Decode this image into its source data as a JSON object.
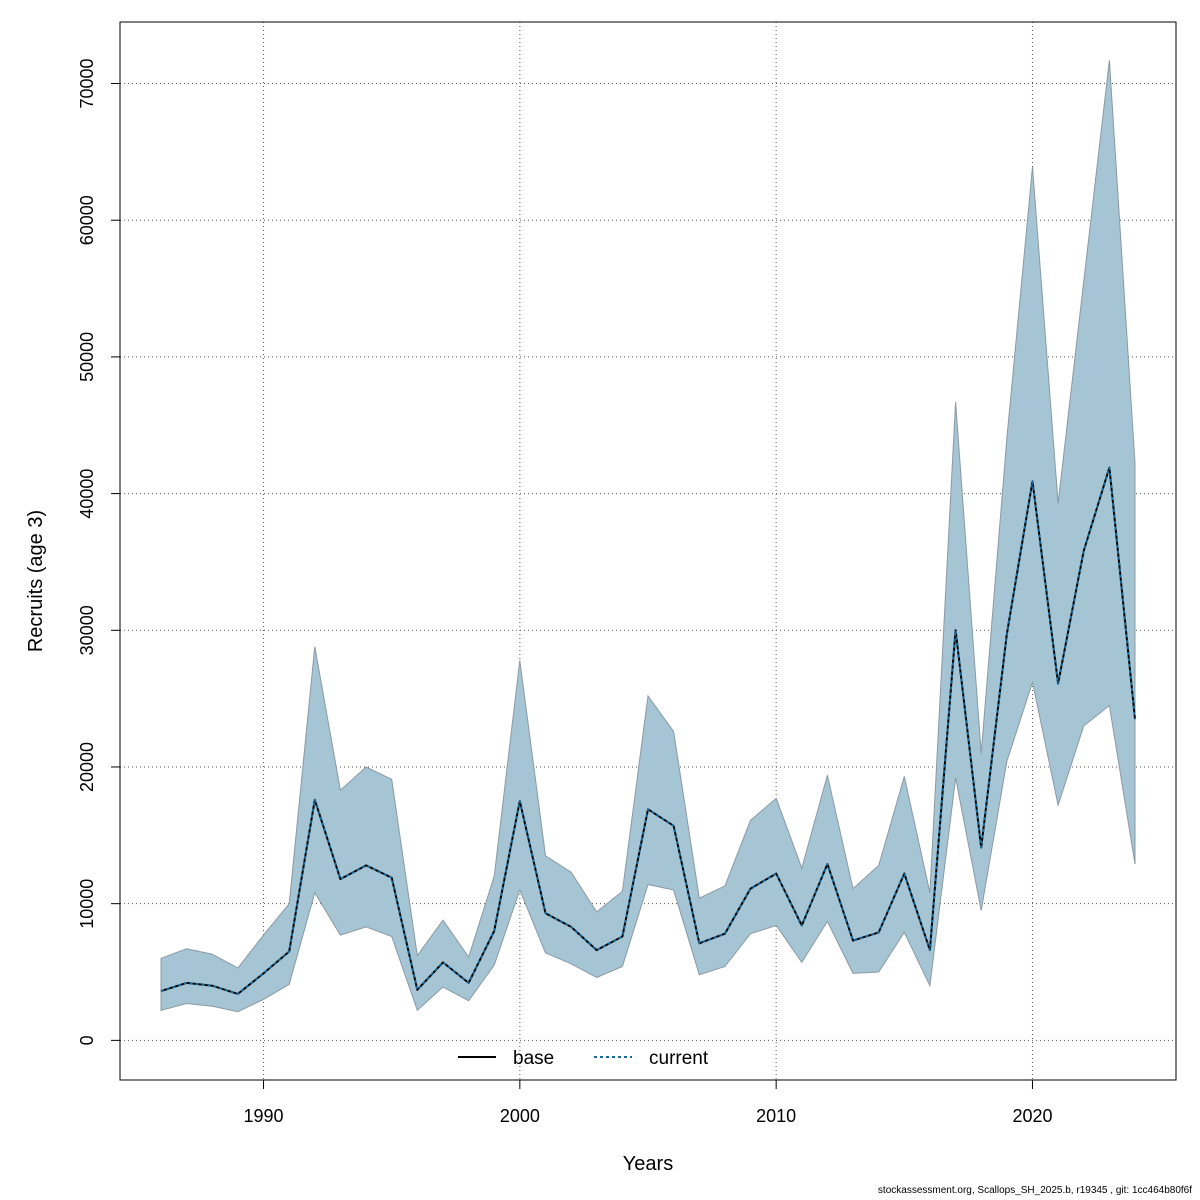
{
  "chart_data": {
    "type": "line",
    "xlabel": "Years",
    "ylabel": "Recruits (age 3)",
    "xlim": [
      1984.4,
      2025.6
    ],
    "ylim": [
      -2900,
      74500
    ],
    "x_ticks": [
      1990,
      2000,
      2010,
      2020
    ],
    "y_ticks": [
      0,
      10000,
      20000,
      30000,
      40000,
      50000,
      60000,
      70000
    ],
    "grid": true,
    "band_color": "#a5c4d4",
    "band_edge_color": "#8a9aa4",
    "years": [
      1986,
      1987,
      1988,
      1989,
      1990,
      1991,
      1992,
      1993,
      1994,
      1995,
      1996,
      1997,
      1998,
      1999,
      2000,
      2001,
      2002,
      2003,
      2004,
      2005,
      2006,
      2007,
      2008,
      2009,
      2010,
      2011,
      2012,
      2013,
      2014,
      2015,
      2016,
      2017,
      2018,
      2019,
      2020,
      2021,
      2022,
      2023,
      2024
    ],
    "band_upper": [
      6000,
      6700,
      6300,
      5300,
      7700,
      10000,
      28800,
      18300,
      20000,
      19100,
      6200,
      8800,
      6100,
      12000,
      27800,
      13500,
      12300,
      9400,
      10900,
      25200,
      22600,
      10400,
      11300,
      16100,
      17700,
      12600,
      19400,
      11100,
      12800,
      19300,
      10800,
      46700,
      21000,
      44000,
      63900,
      39300,
      55500,
      71700,
      42200
    ],
    "band_lower": [
      2200,
      2700,
      2500,
      2100,
      3000,
      4100,
      10800,
      7700,
      8300,
      7600,
      2200,
      3900,
      2900,
      5500,
      11000,
      6400,
      5600,
      4600,
      5400,
      11400,
      11000,
      4800,
      5400,
      7800,
      8400,
      5700,
      8700,
      4900,
      5000,
      7900,
      4000,
      19200,
      9500,
      20400,
      26200,
      17200,
      23000,
      24500,
      12900
    ],
    "series": [
      {
        "name": "base",
        "color": "#000000",
        "dash": "solid",
        "values": [
          3600,
          4200,
          4000,
          3400,
          4900,
          6500,
          17600,
          11800,
          12800,
          11900,
          3700,
          5700,
          4200,
          8000,
          17500,
          9300,
          8300,
          6600,
          7600,
          16900,
          15700,
          7100,
          7800,
          11100,
          12200,
          8400,
          12900,
          7300,
          7900,
          12200,
          6600,
          30000,
          14100,
          29700,
          40900,
          26100,
          35800,
          41900,
          23500
        ]
      },
      {
        "name": "current",
        "color": "#1a6a9a",
        "dash": "dotted",
        "values": [
          3600,
          4200,
          4000,
          3400,
          4900,
          6500,
          17600,
          11800,
          12800,
          11900,
          3700,
          5700,
          4200,
          8000,
          17500,
          9300,
          8300,
          6600,
          7600,
          16900,
          15700,
          7100,
          7800,
          11100,
          12200,
          8400,
          12900,
          7300,
          7900,
          12200,
          6600,
          30000,
          14100,
          29700,
          40900,
          26100,
          35800,
          41900,
          23500
        ]
      }
    ]
  },
  "footer": "stockassessment.org, Scallops_SH_2025.b, r19345 , git: 1cc464b80f6f"
}
